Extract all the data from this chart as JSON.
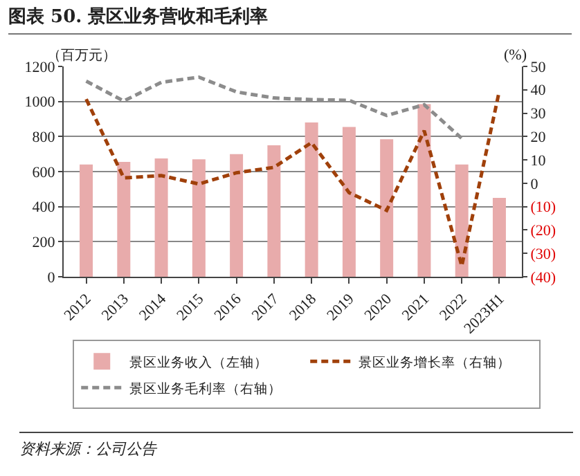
{
  "chart_data": {
    "type": "bar",
    "title": "图表 50. 景区业务营收和毛利率",
    "categories": [
      "2012",
      "2013",
      "2014",
      "2015",
      "2016",
      "2017",
      "2018",
      "2019",
      "2020",
      "2021",
      "2022",
      "2023H1"
    ],
    "series": [
      {
        "name": "景区业务收入（左轴）",
        "color": "#e8abab",
        "values": [
          640,
          655,
          675,
          670,
          700,
          750,
          880,
          855,
          785,
          985,
          640,
          450
        ]
      },
      {
        "name": "景区业务增长率（右轴）",
        "type": "line",
        "axis": "y2",
        "color": "#a0400a",
        "line_style": "dashed",
        "values": [
          36,
          2.3,
          3.3,
          -0.3,
          4.5,
          6.8,
          17.4,
          -4,
          -11.6,
          22.5,
          -35.4,
          39.5
        ]
      },
      {
        "name": "景区业务毛利率（右轴）",
        "type": "line",
        "axis": "y2",
        "color": "#8c8c8c",
        "line_style": "dashed",
        "values": [
          43.7,
          35.2,
          43.2,
          45.4,
          39.1,
          36.5,
          35.8,
          35.5,
          29,
          33.6,
          19.2,
          null
        ]
      }
    ],
    "ylabel": "（百万元）",
    "y2label": "(%)",
    "ylim": [
      0,
      1200
    ],
    "yticks": [
      0,
      200,
      400,
      600,
      800,
      1000,
      1200
    ],
    "y2lim": [
      -40,
      50
    ],
    "y2ticks": [
      {
        "value": -40,
        "label": "(40)"
      },
      {
        "value": -30,
        "label": "(30)"
      },
      {
        "value": -20,
        "label": "(20)"
      },
      {
        "value": -10,
        "label": "(10)"
      },
      0,
      10,
      20,
      30,
      40,
      50
    ],
    "grid": "y",
    "legend": "bottom",
    "marker": "none",
    "annotations": [
      "资料来源：公司公告"
    ]
  }
}
